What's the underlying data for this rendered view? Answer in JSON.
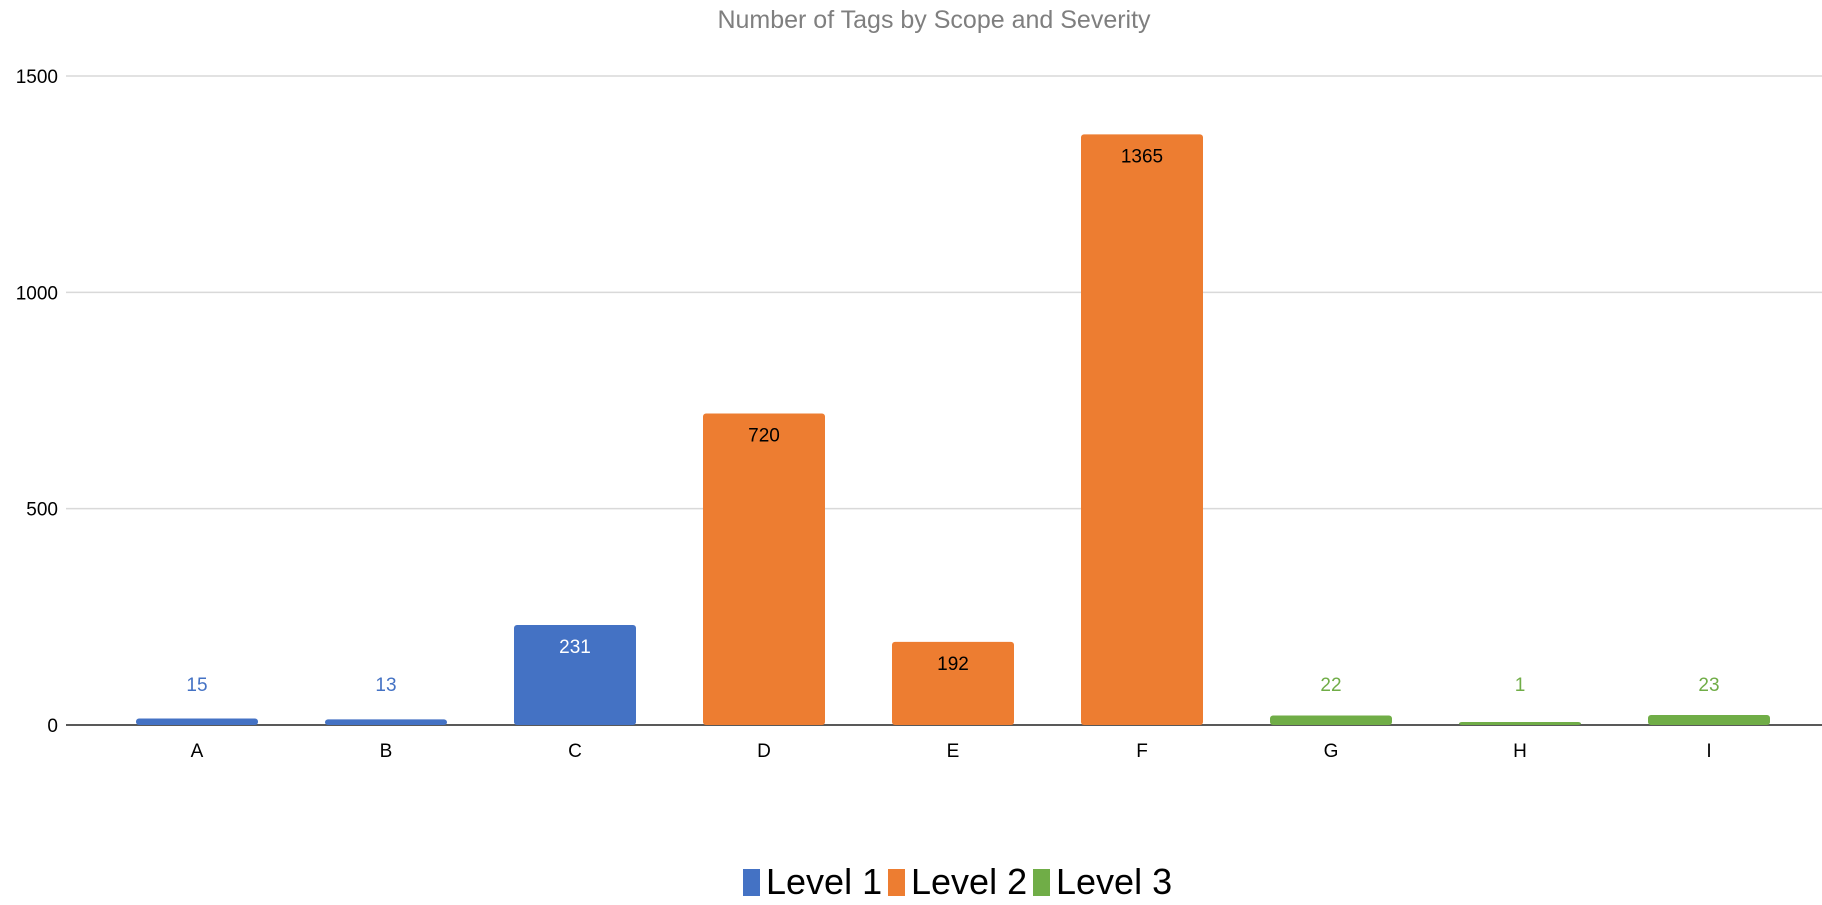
{
  "chart_data": {
    "type": "bar",
    "title": "Number of Tags by Scope and Severity",
    "xlabel": "",
    "ylabel": "",
    "categories": [
      "A",
      "B",
      "C",
      "D",
      "E",
      "F",
      "G",
      "H",
      "I"
    ],
    "values": [
      15,
      13,
      231,
      720,
      192,
      1365,
      22,
      1,
      23
    ],
    "value_labels": [
      "15",
      "13",
      "231",
      "720",
      "192",
      "1365",
      "22",
      "1",
      "23"
    ],
    "series_index": [
      0,
      0,
      0,
      1,
      1,
      1,
      2,
      2,
      2
    ],
    "series": [
      {
        "name": "Level 1",
        "color": "#4472C4"
      },
      {
        "name": "Level 2",
        "color": "#ED7D31"
      },
      {
        "name": "Level 3",
        "color": "#70AD47"
      }
    ],
    "ylim": [
      0,
      1500
    ],
    "yticks": [
      0,
      500,
      1000,
      1500
    ],
    "ytick_labels": [
      "0",
      "500",
      "1000",
      "1500"
    ],
    "grid": true,
    "legend_position": "bottom-center"
  }
}
